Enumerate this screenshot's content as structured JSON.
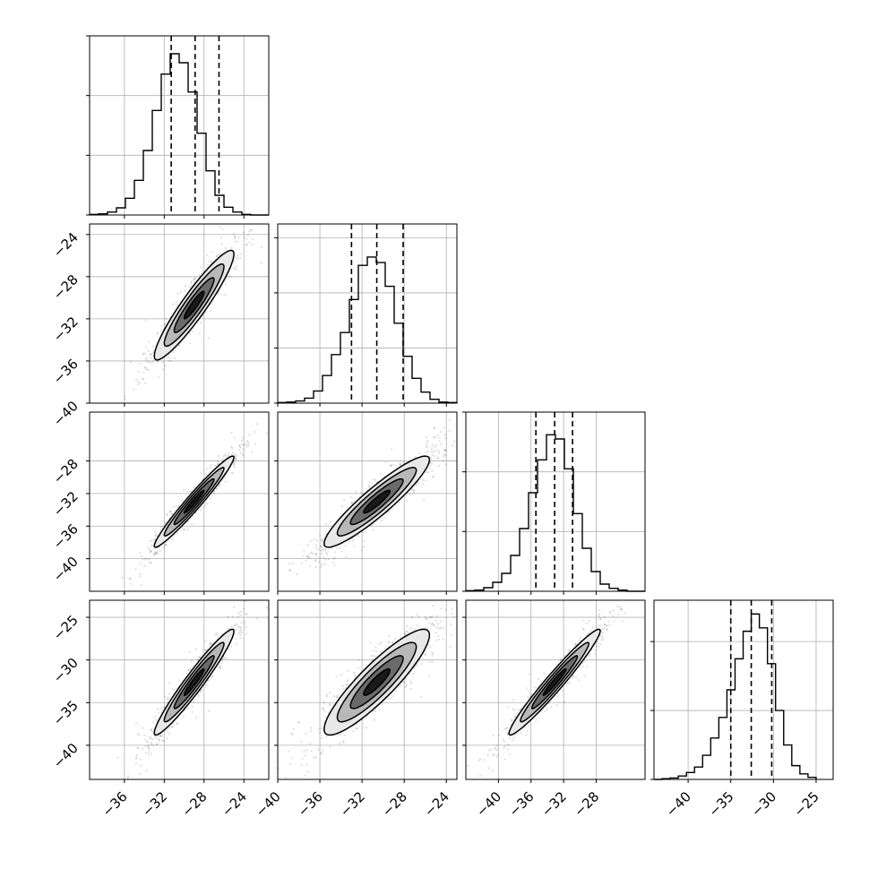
{
  "chart_data": {
    "type": "corner",
    "parameters": 4,
    "grid": true,
    "colors": {
      "ink": "#000000",
      "grid": "#b0b0b0",
      "level_fills": [
        "#e8e8e8",
        "#b8b8b8",
        "#6a6a6a",
        "#1a1a1a"
      ]
    },
    "ranges": [
      [
        -39.5,
        -21.5
      ],
      [
        -40,
        -23
      ],
      [
        -44,
        -22
      ],
      [
        -44,
        -23
      ]
    ],
    "x_ticks": [
      {
        "values": [
          -36,
          -32,
          -28,
          -24
        ],
        "labels": [
          "−36",
          "−32",
          "−28",
          "−24"
        ]
      },
      {
        "values": [
          -40,
          -36,
          -32,
          -28,
          -24
        ],
        "labels": [
          "−40",
          "−36",
          "−32",
          "−28",
          "−24"
        ]
      },
      {
        "values": [
          -40,
          -36,
          -32,
          -28
        ],
        "labels": [
          "−40",
          "−36",
          "−32",
          "−28"
        ]
      },
      {
        "values": [
          -40,
          -35,
          -30,
          -25
        ],
        "labels": [
          "−40",
          "−35",
          "−30",
          "−25"
        ]
      }
    ],
    "y_ticks": [
      null,
      {
        "values": [
          -24,
          -28,
          -32,
          -36,
          -40
        ],
        "labels": [
          "−24",
          "−28",
          "−32",
          "−36",
          "−40"
        ]
      },
      {
        "values": [
          -28,
          -32,
          -36,
          -40
        ],
        "labels": [
          "−28",
          "−32",
          "−36",
          "−40"
        ]
      },
      {
        "values": [
          -25,
          -30,
          -35,
          -40
        ],
        "labels": [
          "−25",
          "−30",
          "−35",
          "−40"
        ]
      }
    ],
    "marginals": [
      {
        "bins": [
          -39.5,
          -38.6,
          -37.7,
          -36.8,
          -35.9,
          -35.0,
          -34.1,
          -33.2,
          -32.3,
          -31.4,
          -30.5,
          -29.6,
          -28.7,
          -27.8,
          -26.9,
          -26.0,
          -25.1,
          -24.2,
          -23.3,
          -22.4,
          -21.5
        ],
        "counts": [
          1,
          2,
          5,
          12,
          28,
          58,
          108,
          175,
          236,
          270,
          255,
          206,
          137,
          74,
          33,
          13,
          5,
          1,
          0,
          0
        ],
        "hist_max": 300,
        "y_grid": [
          0,
          100,
          200,
          300
        ],
        "quantiles": [
          -31.3,
          -28.9,
          -26.5
        ]
      },
      {
        "bins": [
          -40.0,
          -39.15,
          -38.3,
          -37.45,
          -36.6,
          -35.75,
          -34.9,
          -34.05,
          -33.2,
          -32.35,
          -31.5,
          -30.65,
          -29.8,
          -28.95,
          -28.1,
          -27.25,
          -26.4,
          -25.55,
          -24.7,
          -23.85,
          -23.0
        ],
        "counts": [
          1,
          2,
          4,
          9,
          22,
          50,
          88,
          128,
          188,
          250,
          265,
          255,
          212,
          145,
          85,
          45,
          20,
          7,
          2,
          1
        ],
        "hist_max": 325,
        "y_grid": [
          0,
          100,
          200,
          300
        ],
        "quantiles": [
          -33.0,
          -30.6,
          -28.1
        ]
      },
      {
        "bins": [
          -44.0,
          -42.9,
          -41.8,
          -40.7,
          -39.6,
          -38.5,
          -37.4,
          -36.3,
          -35.2,
          -34.1,
          -33.0,
          -31.9,
          -30.8,
          -29.7,
          -28.6,
          -27.5,
          -26.4,
          -25.3,
          -24.2,
          -23.1,
          -22.0
        ],
        "counts": [
          1,
          2,
          6,
          15,
          30,
          60,
          105,
          165,
          220,
          262,
          255,
          205,
          130,
          72,
          33,
          12,
          5,
          2,
          0,
          0
        ],
        "hist_max": 300,
        "y_grid": [
          0,
          100,
          200,
          300
        ],
        "quantiles": [
          -35.4,
          -33.1,
          -30.9
        ]
      },
      {
        "bins": [
          -44.0,
          -43.05,
          -42.1,
          -41.15,
          -40.2,
          -39.25,
          -38.3,
          -37.35,
          -36.4,
          -35.45,
          -34.5,
          -33.55,
          -32.6,
          -31.65,
          -30.7,
          -29.75,
          -28.8,
          -27.85,
          -26.9,
          -25.95,
          -25.0
        ],
        "counts": [
          0,
          1,
          2,
          5,
          10,
          18,
          35,
          60,
          90,
          130,
          175,
          215,
          240,
          220,
          168,
          100,
          50,
          20,
          8,
          3
        ],
        "hist_max": 260,
        "y_grid": [
          0,
          100,
          200
        ],
        "quantiles": [
          -35.0,
          -32.6,
          -30.2
        ]
      }
    ],
    "pairs": [
      {
        "row": 1,
        "col": 0,
        "center": [
          -29.0,
          -30.7
        ],
        "sx": 2.0,
        "sy": 2.6,
        "rho": 0.93,
        "bulk_points": 900,
        "tail_points": 140
      },
      {
        "row": 2,
        "col": 0,
        "center": [
          -29.0,
          -33.0
        ],
        "sx": 2.0,
        "sy": 2.8,
        "rho": 0.97,
        "bulk_points": 900,
        "tail_points": 140
      },
      {
        "row": 2,
        "col": 1,
        "center": [
          -30.6,
          -33.0
        ],
        "sx": 2.5,
        "sy": 2.8,
        "rho": 0.92,
        "bulk_points": 900,
        "tail_points": 140
      },
      {
        "row": 3,
        "col": 0,
        "center": [
          -29.0,
          -32.6
        ],
        "sx": 2.0,
        "sy": 3.1,
        "rho": 0.96,
        "bulk_points": 900,
        "tail_points": 140
      },
      {
        "row": 3,
        "col": 1,
        "center": [
          -30.6,
          -32.6
        ],
        "sx": 2.5,
        "sy": 3.1,
        "rho": 0.89,
        "bulk_points": 900,
        "tail_points": 140
      },
      {
        "row": 3,
        "col": 2,
        "center": [
          -33.1,
          -32.6
        ],
        "sx": 2.8,
        "sy": 3.1,
        "rho": 0.97,
        "bulk_points": 900,
        "tail_points": 140
      }
    ],
    "contour_levels_sigma": [
      0.5,
      1.0,
      1.5,
      2.0
    ]
  }
}
